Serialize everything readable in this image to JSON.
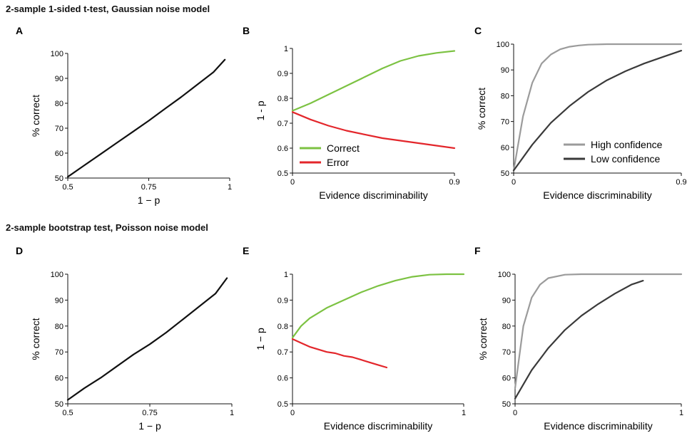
{
  "section_titles": [
    "2-sample 1-sided t-test, Gaussian noise model",
    "2-sample bootstrap test, Poisson noise model"
  ],
  "colors": {
    "correct": "#7cc242",
    "error": "#e3262b",
    "high_confidence": "#9b9b9b",
    "low_confidence": "#3a3a3a",
    "single": "#111111"
  },
  "chart_data": [
    {
      "panel": "A",
      "type": "line",
      "xlabel": "1 − p",
      "ylabel": "% correct",
      "xlim": [
        0.5,
        1
      ],
      "ylim": [
        50,
        100
      ],
      "xticks": [
        "0.5",
        "0.75",
        "1"
      ],
      "yticks": [
        "50",
        "60",
        "70",
        "80",
        "90",
        "100"
      ],
      "series": [
        {
          "color_key": "single",
          "x": [
            0.5,
            0.55,
            0.6,
            0.65,
            0.7,
            0.75,
            0.8,
            0.85,
            0.9,
            0.95,
            0.985
          ],
          "y": [
            50.5,
            55,
            59.5,
            64,
            68.5,
            73,
            77.8,
            82.5,
            87.5,
            92.5,
            97.5
          ]
        }
      ]
    },
    {
      "panel": "B",
      "type": "line",
      "xlabel": "Evidence discriminability",
      "ylabel": "1 - p",
      "xlim": [
        0,
        0.9
      ],
      "ylim": [
        0.5,
        1
      ],
      "xticks": [
        "0",
        "0.9"
      ],
      "yticks": [
        "0.5",
        "0.6",
        "0.7",
        "0.8",
        "0.9",
        "1"
      ],
      "legend": "bottom-left",
      "series": [
        {
          "name": "Correct",
          "color_key": "correct",
          "x": [
            0,
            0.1,
            0.2,
            0.3,
            0.4,
            0.5,
            0.6,
            0.7,
            0.8,
            0.9
          ],
          "y": [
            0.75,
            0.78,
            0.815,
            0.85,
            0.885,
            0.92,
            0.95,
            0.97,
            0.982,
            0.99
          ]
        },
        {
          "name": "Error",
          "color_key": "error",
          "x": [
            0,
            0.1,
            0.2,
            0.3,
            0.4,
            0.5,
            0.6,
            0.7,
            0.8,
            0.9
          ],
          "y": [
            0.745,
            0.715,
            0.69,
            0.67,
            0.655,
            0.64,
            0.63,
            0.62,
            0.61,
            0.6
          ]
        }
      ]
    },
    {
      "panel": "C",
      "type": "line",
      "xlabel": "Evidence discriminability",
      "ylabel": "% correct",
      "xlim": [
        0,
        0.9
      ],
      "ylim": [
        50,
        100
      ],
      "xticks": [
        "0",
        "0.9"
      ],
      "yticks": [
        "50",
        "60",
        "70",
        "80",
        "90",
        "100"
      ],
      "legend": "bottom-right",
      "series": [
        {
          "name": "High confidence",
          "color_key": "high_confidence",
          "x": [
            0,
            0.05,
            0.1,
            0.15,
            0.2,
            0.25,
            0.3,
            0.35,
            0.4,
            0.5,
            0.6,
            0.9
          ],
          "y": [
            51,
            72,
            85,
            92.5,
            96,
            98,
            99,
            99.5,
            99.8,
            100,
            100,
            100
          ]
        },
        {
          "name": "Low confidence",
          "color_key": "low_confidence",
          "x": [
            0,
            0.1,
            0.2,
            0.3,
            0.4,
            0.5,
            0.6,
            0.7,
            0.8,
            0.9
          ],
          "y": [
            51,
            61,
            69.5,
            76,
            81.5,
            86,
            89.5,
            92.5,
            95,
            97.5
          ]
        }
      ]
    },
    {
      "panel": "D",
      "type": "line",
      "xlabel": "1 − p",
      "ylabel": "% correct",
      "xlim": [
        0.5,
        1
      ],
      "ylim": [
        50,
        100
      ],
      "xticks": [
        "0.5",
        "0.75",
        "1"
      ],
      "yticks": [
        "50",
        "60",
        "70",
        "80",
        "90",
        "100"
      ],
      "series": [
        {
          "color_key": "single",
          "x": [
            0.5,
            0.55,
            0.6,
            0.65,
            0.7,
            0.75,
            0.8,
            0.85,
            0.9,
            0.95,
            0.985
          ],
          "y": [
            51.5,
            56,
            60,
            64.5,
            69,
            73,
            77.5,
            82.5,
            87.5,
            92.5,
            98.5
          ]
        }
      ]
    },
    {
      "panel": "E",
      "type": "line",
      "xlabel": "Evidence discriminability",
      "ylabel": "1 − p",
      "xlim": [
        0,
        1
      ],
      "ylim": [
        0.5,
        1
      ],
      "xticks": [
        "0",
        "1"
      ],
      "yticks": [
        "0.5",
        "0.6",
        "0.7",
        "0.8",
        "0.9",
        "1"
      ],
      "series": [
        {
          "color_key": "correct",
          "x": [
            0,
            0.05,
            0.1,
            0.2,
            0.3,
            0.4,
            0.5,
            0.6,
            0.7,
            0.8,
            0.9,
            1.0
          ],
          "y": [
            0.755,
            0.8,
            0.83,
            0.87,
            0.9,
            0.93,
            0.955,
            0.975,
            0.99,
            0.998,
            1.0,
            1.0
          ]
        },
        {
          "color_key": "error",
          "x": [
            0,
            0.05,
            0.1,
            0.15,
            0.2,
            0.25,
            0.3,
            0.35,
            0.4,
            0.45,
            0.5,
            0.55
          ],
          "y": [
            0.75,
            0.735,
            0.72,
            0.71,
            0.7,
            0.695,
            0.685,
            0.68,
            0.67,
            0.66,
            0.65,
            0.64
          ]
        }
      ]
    },
    {
      "panel": "F",
      "type": "line",
      "xlabel": "Evidence discriminability",
      "ylabel": "% correct",
      "xlim": [
        0,
        1
      ],
      "ylim": [
        50,
        100
      ],
      "xticks": [
        "0",
        "1"
      ],
      "yticks": [
        "50",
        "60",
        "70",
        "80",
        "90",
        "100"
      ],
      "series": [
        {
          "color_key": "high_confidence",
          "x": [
            0,
            0.05,
            0.1,
            0.15,
            0.2,
            0.3,
            0.4,
            0.5,
            1.0
          ],
          "y": [
            56,
            80,
            91,
            96,
            98.5,
            99.8,
            100,
            100,
            100
          ]
        },
        {
          "color_key": "low_confidence",
          "x": [
            0,
            0.1,
            0.2,
            0.3,
            0.4,
            0.5,
            0.6,
            0.7,
            0.77
          ],
          "y": [
            52,
            63,
            71.5,
            78.5,
            84,
            88.5,
            92.5,
            96,
            97.5
          ]
        }
      ]
    }
  ]
}
